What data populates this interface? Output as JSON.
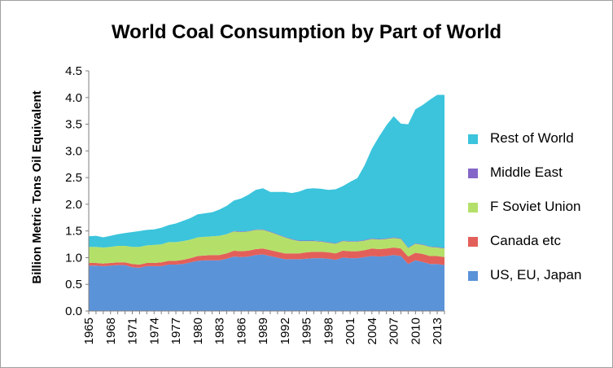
{
  "chart_data": {
    "type": "area",
    "stacked": true,
    "title": "World Coal Consumption by Part of World",
    "xlabel": "",
    "ylabel": "Billion Metric Tons Oil Equivalent",
    "ylim": [
      0,
      4.5
    ],
    "yticks": [
      "0.0",
      "0.5",
      "1.0",
      "1.5",
      "2.0",
      "2.5",
      "3.0",
      "3.5",
      "4.0",
      "4.5"
    ],
    "x": [
      1965,
      1966,
      1967,
      1968,
      1969,
      1970,
      1971,
      1972,
      1973,
      1974,
      1975,
      1976,
      1977,
      1978,
      1979,
      1980,
      1981,
      1982,
      1983,
      1984,
      1985,
      1986,
      1987,
      1988,
      1989,
      1990,
      1991,
      1992,
      1993,
      1994,
      1995,
      1996,
      1997,
      1998,
      1999,
      2000,
      2001,
      2002,
      2003,
      2004,
      2005,
      2006,
      2007,
      2008,
      2009,
      2010,
      2011,
      2012,
      2013,
      2014
    ],
    "xticks": [
      "1965",
      "1968",
      "1971",
      "1974",
      "1977",
      "1980",
      "1983",
      "1986",
      "1989",
      "1992",
      "1995",
      "1998",
      "2001",
      "2004",
      "2007",
      "2010",
      "2013"
    ],
    "legend_position": "right",
    "series": [
      {
        "name": "US, EU, Japan",
        "color": "#5b93d9",
        "values": [
          0.85,
          0.85,
          0.84,
          0.85,
          0.86,
          0.86,
          0.82,
          0.81,
          0.84,
          0.84,
          0.84,
          0.87,
          0.87,
          0.88,
          0.91,
          0.94,
          0.95,
          0.95,
          0.95,
          0.98,
          1.02,
          1.01,
          1.02,
          1.05,
          1.06,
          1.03,
          1.0,
          0.97,
          0.97,
          0.97,
          0.98,
          0.99,
          0.99,
          0.98,
          0.96,
          1.0,
          0.99,
          0.99,
          1.01,
          1.03,
          1.02,
          1.03,
          1.05,
          1.03,
          0.88,
          0.95,
          0.92,
          0.88,
          0.88,
          0.86
        ]
      },
      {
        "name": "Canada etc",
        "color": "#e3605a",
        "values": [
          0.05,
          0.05,
          0.05,
          0.05,
          0.05,
          0.05,
          0.06,
          0.06,
          0.06,
          0.06,
          0.07,
          0.07,
          0.07,
          0.08,
          0.08,
          0.09,
          0.09,
          0.1,
          0.1,
          0.1,
          0.11,
          0.11,
          0.11,
          0.11,
          0.11,
          0.11,
          0.11,
          0.11,
          0.11,
          0.11,
          0.12,
          0.12,
          0.12,
          0.12,
          0.12,
          0.13,
          0.13,
          0.13,
          0.13,
          0.14,
          0.14,
          0.14,
          0.14,
          0.14,
          0.14,
          0.14,
          0.15,
          0.15,
          0.15,
          0.15
        ]
      },
      {
        "name": "F Soviet Union",
        "color": "#b4e06a",
        "values": [
          0.3,
          0.3,
          0.3,
          0.3,
          0.31,
          0.31,
          0.32,
          0.33,
          0.33,
          0.34,
          0.34,
          0.35,
          0.35,
          0.35,
          0.35,
          0.35,
          0.35,
          0.35,
          0.36,
          0.36,
          0.36,
          0.36,
          0.36,
          0.36,
          0.35,
          0.34,
          0.32,
          0.3,
          0.26,
          0.23,
          0.21,
          0.2,
          0.19,
          0.18,
          0.18,
          0.18,
          0.18,
          0.18,
          0.18,
          0.18,
          0.18,
          0.18,
          0.18,
          0.18,
          0.16,
          0.17,
          0.17,
          0.17,
          0.16,
          0.16
        ]
      },
      {
        "name": "Middle East",
        "color": "#8466c8",
        "values": [
          0.0,
          0.0,
          0.0,
          0.0,
          0.0,
          0.0,
          0.0,
          0.0,
          0.0,
          0.0,
          0.0,
          0.0,
          0.0,
          0.0,
          0.0,
          0.0,
          0.0,
          0.0,
          0.0,
          0.0,
          0.01,
          0.01,
          0.01,
          0.01,
          0.01,
          0.01,
          0.01,
          0.01,
          0.01,
          0.01,
          0.01,
          0.01,
          0.01,
          0.01,
          0.01,
          0.01,
          0.01,
          0.01,
          0.01,
          0.01,
          0.01,
          0.01,
          0.01,
          0.01,
          0.01,
          0.01,
          0.01,
          0.01,
          0.01,
          0.01
        ]
      },
      {
        "name": "Rest of World",
        "color": "#3bc4dc",
        "values": [
          0.2,
          0.21,
          0.19,
          0.21,
          0.22,
          0.24,
          0.28,
          0.3,
          0.29,
          0.29,
          0.31,
          0.32,
          0.35,
          0.38,
          0.4,
          0.43,
          0.44,
          0.45,
          0.49,
          0.53,
          0.57,
          0.62,
          0.68,
          0.74,
          0.77,
          0.74,
          0.79,
          0.84,
          0.86,
          0.92,
          0.97,
          0.98,
          0.98,
          0.98,
          1.01,
          1.02,
          1.11,
          1.18,
          1.4,
          1.68,
          1.92,
          2.12,
          2.27,
          2.15,
          2.31,
          2.51,
          2.61,
          2.75,
          2.85,
          2.87
        ]
      }
    ]
  }
}
